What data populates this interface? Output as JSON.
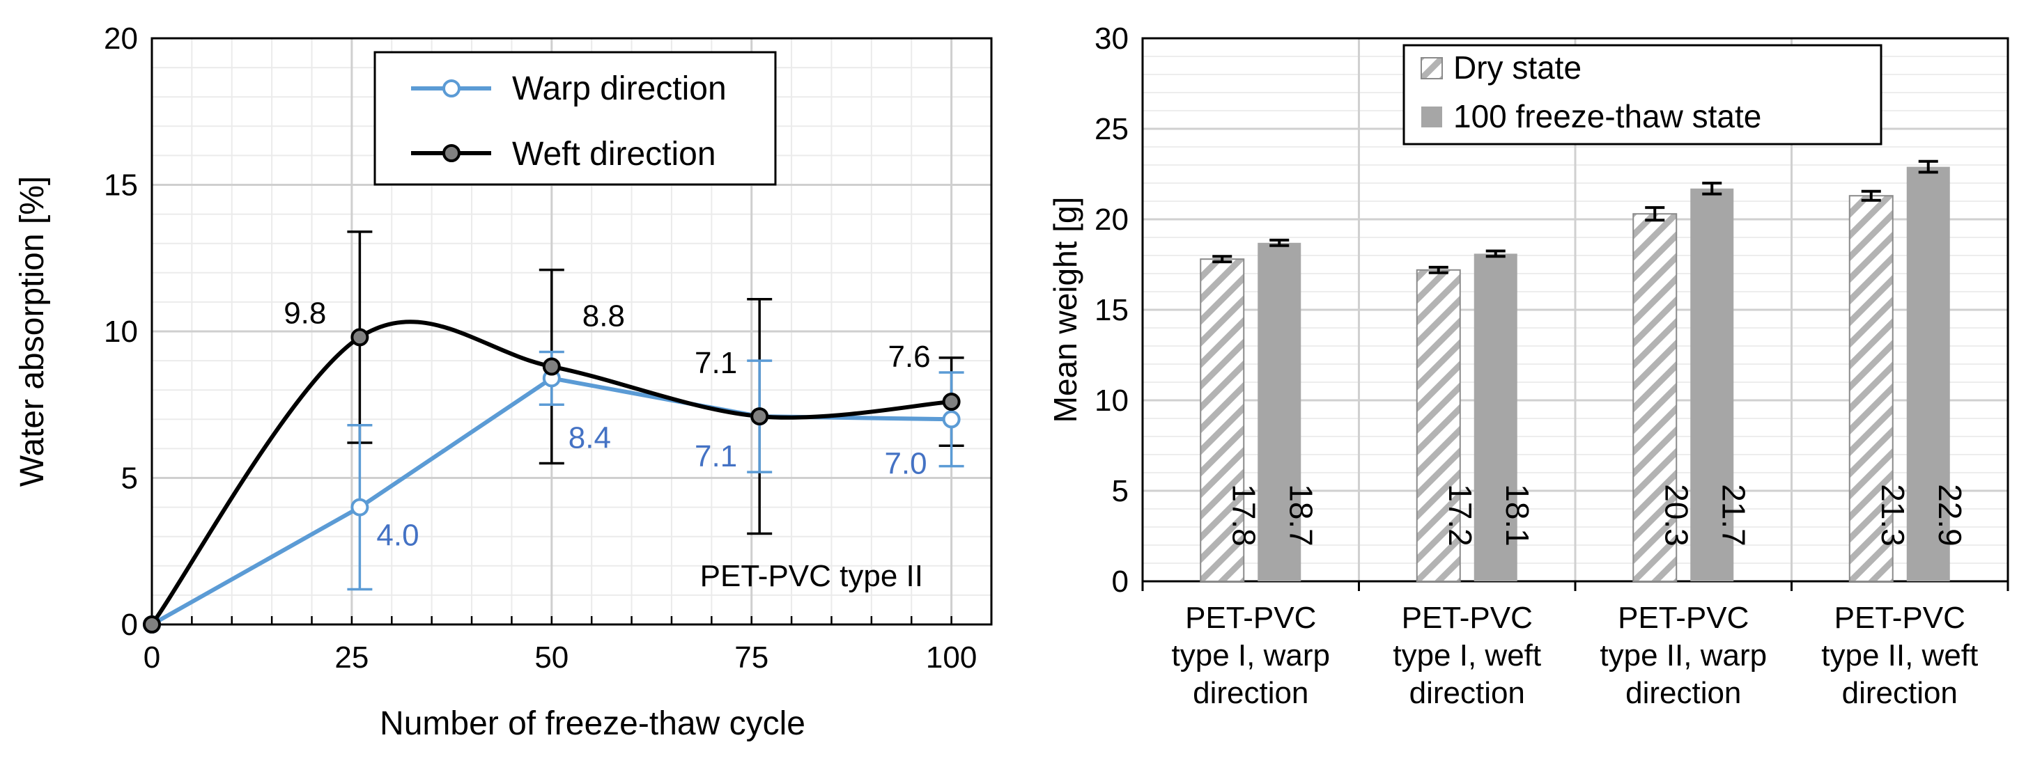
{
  "chart_data": [
    {
      "type": "line",
      "xlabel": "Number of freeze-thaw cycle",
      "ylabel": "Water absorption [%]",
      "xlim": [
        0,
        105
      ],
      "ylim": [
        0,
        20
      ],
      "xticks": [
        "0",
        "25",
        "50",
        "75",
        "100"
      ],
      "yticks": [
        "0",
        "5",
        "10",
        "15",
        "20"
      ],
      "grid": true,
      "legend_position": "top-center",
      "annotation": "PET-PVC type II",
      "series": [
        {
          "name": "Warp direction",
          "color": "#5b9bd5",
          "label_color": "#4472c4",
          "x": [
            0,
            26,
            50,
            76,
            100
          ],
          "values": [
            0,
            4.0,
            8.4,
            7.1,
            7.0
          ],
          "err_low": [
            0,
            2.8,
            0.9,
            1.9,
            1.6
          ],
          "err_high": [
            0,
            2.8,
            0.9,
            1.9,
            1.6
          ],
          "labels": [
            "",
            "4.0",
            "8.4",
            "7.1",
            "7.0"
          ]
        },
        {
          "name": "Weft direction",
          "color": "#000000",
          "label_color": "#000000",
          "x": [
            0,
            26,
            50,
            76,
            100
          ],
          "values": [
            0,
            9.8,
            8.8,
            7.1,
            7.6
          ],
          "err_low": [
            0,
            3.6,
            3.3,
            4.0,
            1.5
          ],
          "err_high": [
            0,
            3.6,
            3.3,
            4.0,
            1.5
          ],
          "labels": [
            "",
            "9.8",
            "8.8",
            "7.1",
            "7.6"
          ]
        }
      ]
    },
    {
      "type": "bar",
      "ylabel": "Mean weight [g]",
      "ylim": [
        0,
        30
      ],
      "yticks": [
        "0",
        "5",
        "10",
        "15",
        "20",
        "25",
        "30"
      ],
      "grid": true,
      "legend_position": "top-center",
      "categories": [
        [
          "PET-PVC",
          "type I, warp",
          "direction"
        ],
        [
          "PET-PVC",
          "type I, weft",
          "direction"
        ],
        [
          "PET-PVC",
          "type II, warp",
          "direction"
        ],
        [
          "PET-PVC",
          "type II, weft",
          "direction"
        ]
      ],
      "series": [
        {
          "name": "Dry state",
          "pattern": "hatched",
          "values": [
            17.8,
            17.2,
            20.3,
            21.3
          ],
          "errors": [
            0.15,
            0.15,
            0.35,
            0.25
          ],
          "labels": [
            "17.8",
            "17.2",
            "20.3",
            "21.3"
          ]
        },
        {
          "name": "100 freeze-thaw state",
          "pattern": "solid",
          "color": "#a6a6a6",
          "values": [
            18.7,
            18.1,
            21.7,
            22.9
          ],
          "errors": [
            0.15,
            0.15,
            0.3,
            0.3
          ],
          "labels": [
            "18.7",
            "18.1",
            "21.7",
            "22.9"
          ]
        }
      ]
    }
  ]
}
